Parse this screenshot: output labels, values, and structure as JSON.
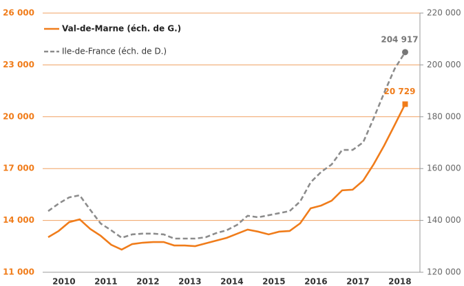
{
  "chart_data": {
    "type": "line",
    "categories": [
      null,
      "2010",
      null,
      null,
      null,
      "2011",
      null,
      null,
      null,
      "2012",
      null,
      null,
      null,
      "2013",
      null,
      null,
      null,
      "2014",
      null,
      null,
      null,
      "2015",
      null,
      null,
      null,
      "2016",
      null,
      null,
      null,
      "2017",
      null,
      null,
      null,
      "2018",
      null
    ],
    "series": [
      {
        "name": "Val-de-Marne (éch. de G.)",
        "color": "#f07c1a",
        "axis": "y",
        "values": [
          13030,
          13390,
          13900,
          14060,
          13510,
          13110,
          12590,
          12310,
          12630,
          12710,
          12750,
          12750,
          12550,
          12550,
          12510,
          12670,
          12830,
          12990,
          13230,
          13470,
          13350,
          13190,
          13350,
          13390,
          13830,
          14700,
          14860,
          15140,
          15740,
          15780,
          16300,
          17250,
          18330,
          19520,
          20729
        ],
        "value_labels": [
          null,
          null,
          null,
          null,
          null,
          null,
          null,
          null,
          null,
          null,
          null,
          null,
          null,
          null,
          null,
          null,
          null,
          null,
          null,
          null,
          null,
          null,
          null,
          null,
          null,
          null,
          null,
          null,
          null,
          null,
          null,
          null,
          null,
          null,
          "20 729"
        ]
      },
      {
        "name": "Ile-de-France (éch. de D.)",
        "color": "#8c8c8c",
        "axis": "y2",
        "values": [
          143600,
          146500,
          148900,
          149700,
          144100,
          138800,
          136200,
          133300,
          134600,
          134900,
          134900,
          134600,
          133000,
          133000,
          133000,
          133500,
          135100,
          136200,
          138300,
          141800,
          141200,
          142000,
          142800,
          143600,
          147300,
          154700,
          158700,
          161600,
          167200,
          167200,
          170100,
          179400,
          189200,
          198500,
          204917
        ],
        "value_labels": [
          null,
          null,
          null,
          null,
          null,
          null,
          null,
          null,
          null,
          null,
          null,
          null,
          null,
          null,
          null,
          null,
          null,
          null,
          null,
          null,
          null,
          null,
          null,
          null,
          null,
          null,
          null,
          null,
          null,
          null,
          null,
          null,
          null,
          null,
          "204 917"
        ]
      }
    ],
    "ylim": [
      11000,
      26000
    ],
    "yticks": [
      {
        "value": 11000,
        "label": "11 000"
      },
      {
        "value": 14000,
        "label": "14 000"
      },
      {
        "value": 17000,
        "label": "17 000"
      },
      {
        "value": 20000,
        "label": "20 000"
      },
      {
        "value": 23000,
        "label": "23 000"
      },
      {
        "value": 26000,
        "label": "26 000"
      }
    ],
    "y2lim": [
      120000,
      220000
    ],
    "y2ticks": [
      {
        "value": 120000,
        "label": "120 000"
      },
      {
        "value": 140000,
        "label": "140 000"
      },
      {
        "value": 160000,
        "label": "160 000"
      },
      {
        "value": 180000,
        "label": "180 000"
      },
      {
        "value": 200000,
        "label": "200 000"
      },
      {
        "value": 220000,
        "label": "220 000"
      }
    ],
    "grid": true,
    "legend": "top-left"
  }
}
